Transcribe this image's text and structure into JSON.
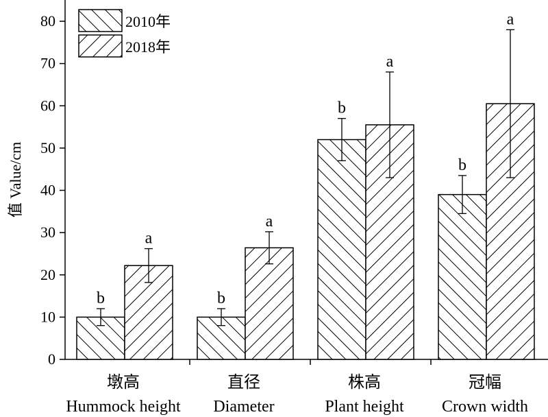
{
  "chart_data": {
    "type": "bar",
    "categories": [
      {
        "zh": "墩高",
        "en": "Hummock height"
      },
      {
        "zh": "直径",
        "en": "Diameter"
      },
      {
        "zh": "株高",
        "en": "Plant height"
      },
      {
        "zh": "冠幅",
        "en": "Crown width"
      }
    ],
    "series": [
      {
        "name": "2010年",
        "values": [
          10,
          10,
          52,
          39
        ],
        "errors": [
          2,
          2,
          5,
          4.5
        ],
        "significance": [
          "b",
          "b",
          "b",
          "b"
        ]
      },
      {
        "name": "2018年",
        "values": [
          22.2,
          26.4,
          55.5,
          60.5
        ],
        "errors": [
          4,
          3.8,
          12.5,
          17.5
        ],
        "significance": [
          "a",
          "a",
          "a",
          "a"
        ]
      }
    ],
    "ylabel": "值 Value/cm",
    "xlabel": "",
    "title": "",
    "ylim": [
      0,
      85
    ],
    "yticks": [
      0,
      10,
      20,
      30,
      40,
      50,
      60,
      70,
      80
    ],
    "legend_position": "top-left",
    "grid": false
  }
}
